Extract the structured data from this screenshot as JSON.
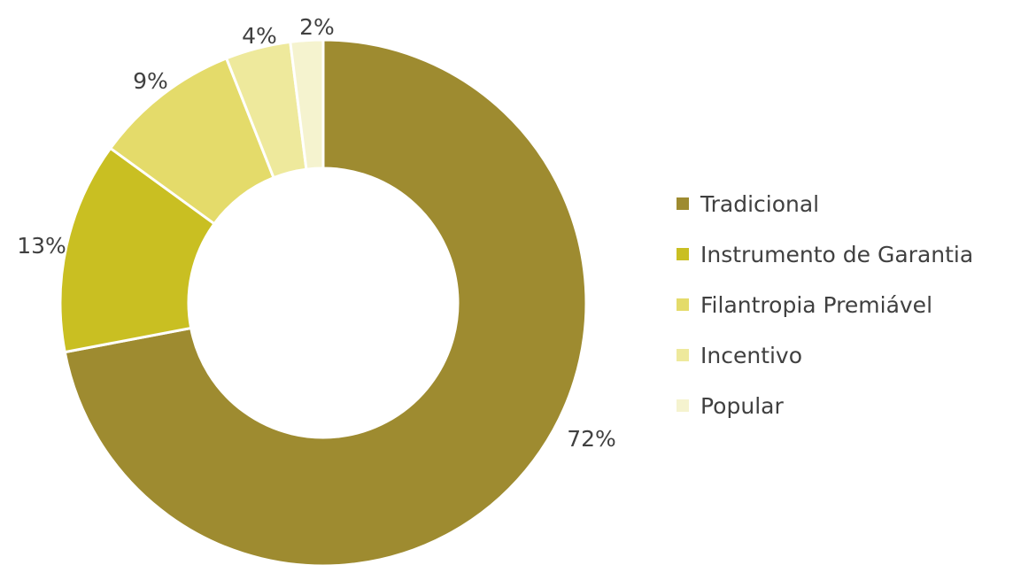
{
  "chart_data": {
    "type": "pie",
    "variant": "donut",
    "title": "",
    "legend_position": "right",
    "slices": [
      {
        "name": "Tradicional",
        "value": 72,
        "label": "72%",
        "color": "#9e8b30"
      },
      {
        "name": "Instrumento de Garantia",
        "value": 13,
        "label": "13%",
        "color": "#c9bf22"
      },
      {
        "name": "Filantropia Premiável",
        "value": 9,
        "label": "9%",
        "color": "#e4db6a"
      },
      {
        "name": "Incentivo",
        "value": 4,
        "label": "4%",
        "color": "#eee99c"
      },
      {
        "name": "Popular",
        "value": 2,
        "label": "2%",
        "color": "#f5f3cf"
      }
    ]
  }
}
